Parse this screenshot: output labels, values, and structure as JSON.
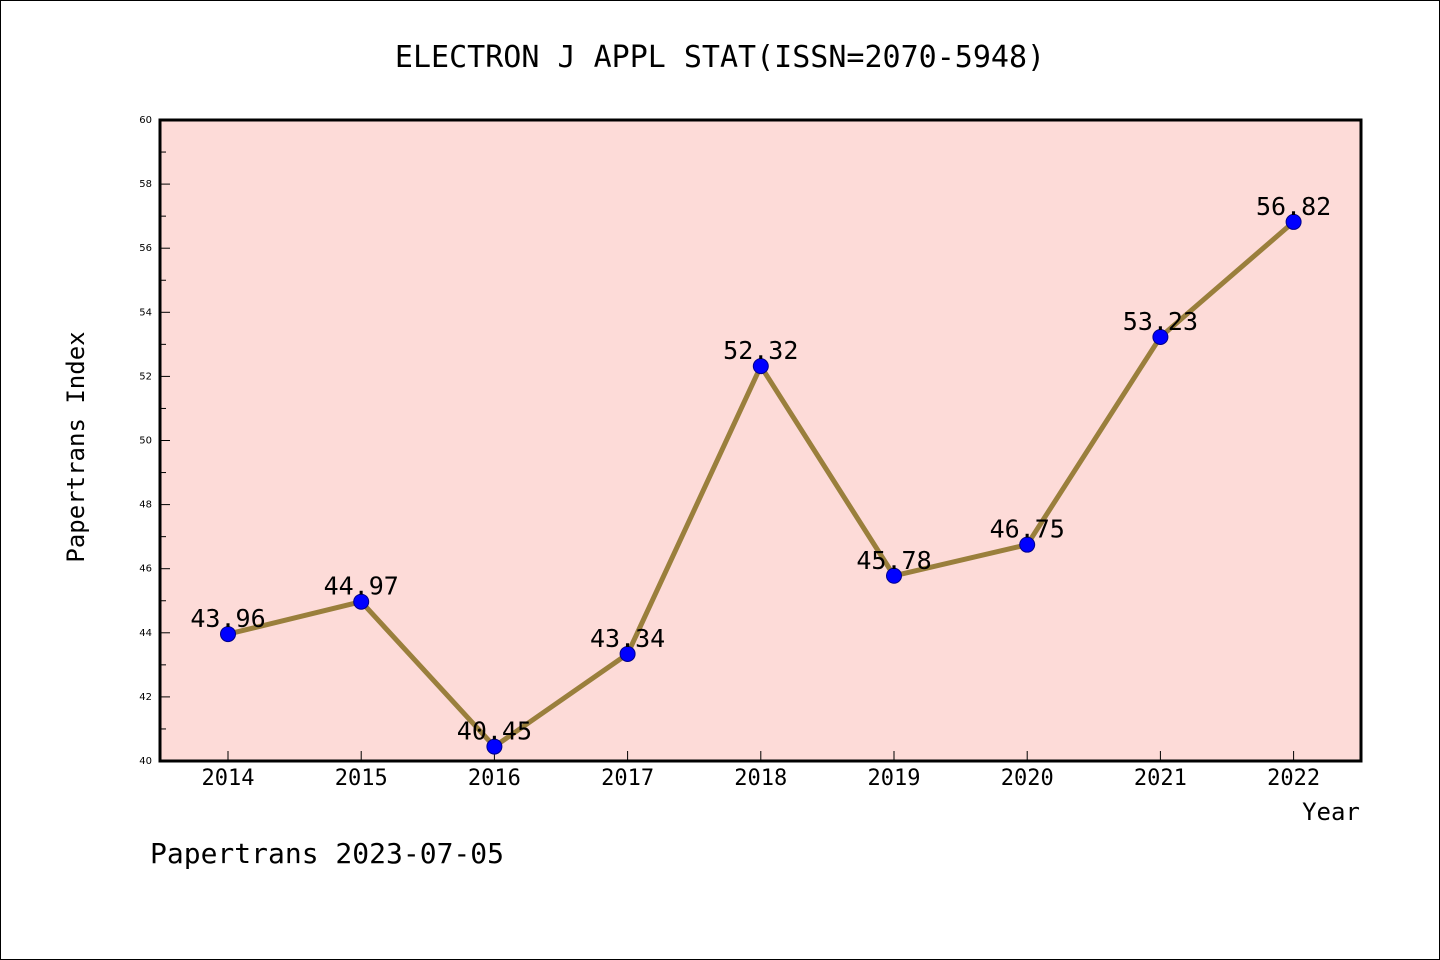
{
  "chart_data": {
    "type": "line",
    "title": "ELECTRON J APPL STAT(ISSN=2070-5948)",
    "xlabel": "Year",
    "ylabel": "Papertrans Index",
    "categories": [
      "2014",
      "2015",
      "2016",
      "2017",
      "2018",
      "2019",
      "2020",
      "2021",
      "2022"
    ],
    "series": [
      {
        "values": [
          43.96,
          44.97,
          40.45,
          43.34,
          52.32,
          45.78,
          46.75,
          53.23,
          56.82
        ],
        "labels": [
          "43.96",
          "44.97",
          "40.45",
          "43.34",
          "52.32",
          "45.78",
          "46.75",
          "53.23",
          "56.82"
        ]
      }
    ],
    "ylim": [
      40,
      60
    ],
    "yticks": [
      40,
      42,
      44,
      46,
      48,
      50,
      52,
      54,
      56,
      58,
      60
    ],
    "ytick_labels": [
      "40",
      "42",
      "44",
      "46",
      "48",
      "50",
      "52",
      "54",
      "56",
      "58",
      "60"
    ],
    "grid": false,
    "colors": {
      "plot_background": "#fddbd8",
      "line": "#9a7f3c",
      "marker": "#0000ff"
    }
  },
  "footer": "Papertrans 2023-07-05"
}
